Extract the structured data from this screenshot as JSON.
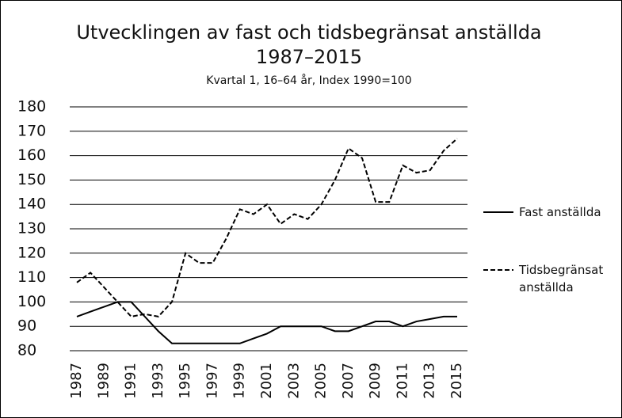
{
  "chart_data": {
    "type": "line",
    "title": [
      "Utvecklingen av fast och tidsbegränsat anställda",
      "1987–2015"
    ],
    "subtitle": "Kvartal 1, 16–64 år, Index 1990=100",
    "x": [
      1987,
      1988,
      1989,
      1990,
      1991,
      1992,
      1993,
      1994,
      1995,
      1996,
      1997,
      1998,
      1999,
      2000,
      2001,
      2002,
      2003,
      2004,
      2005,
      2006,
      2007,
      2008,
      2009,
      2010,
      2011,
      2012,
      2013,
      2014,
      2015
    ],
    "series": [
      {
        "name": "Fast anställda",
        "color": "#000000",
        "dash": false,
        "values": [
          94,
          96,
          98,
          100,
          100,
          94,
          88,
          83,
          83,
          83,
          83,
          83,
          83,
          85,
          87,
          90,
          90,
          90,
          90,
          88,
          88,
          90,
          92,
          92,
          90,
          92,
          93,
          94,
          94
        ]
      },
      {
        "name": "Tidsbegränsat anställda",
        "color": "#000000",
        "dash": true,
        "values": [
          108,
          112,
          106,
          100,
          94,
          95,
          94,
          100,
          120,
          116,
          116,
          126,
          138,
          136,
          140,
          132,
          136,
          134,
          140,
          150,
          163,
          159,
          141,
          141,
          156,
          153,
          154,
          162,
          167
        ]
      }
    ],
    "xlim": [
      1987,
      2015
    ],
    "xticks": [
      1987,
      1989,
      1991,
      1993,
      1995,
      1997,
      1999,
      2001,
      2003,
      2005,
      2007,
      2009,
      2011,
      2013,
      2015
    ],
    "ylim": [
      80,
      180
    ],
    "yticks": [
      80,
      90,
      100,
      110,
      120,
      130,
      140,
      150,
      160,
      170,
      180
    ],
    "grid": true,
    "legend": "right"
  }
}
